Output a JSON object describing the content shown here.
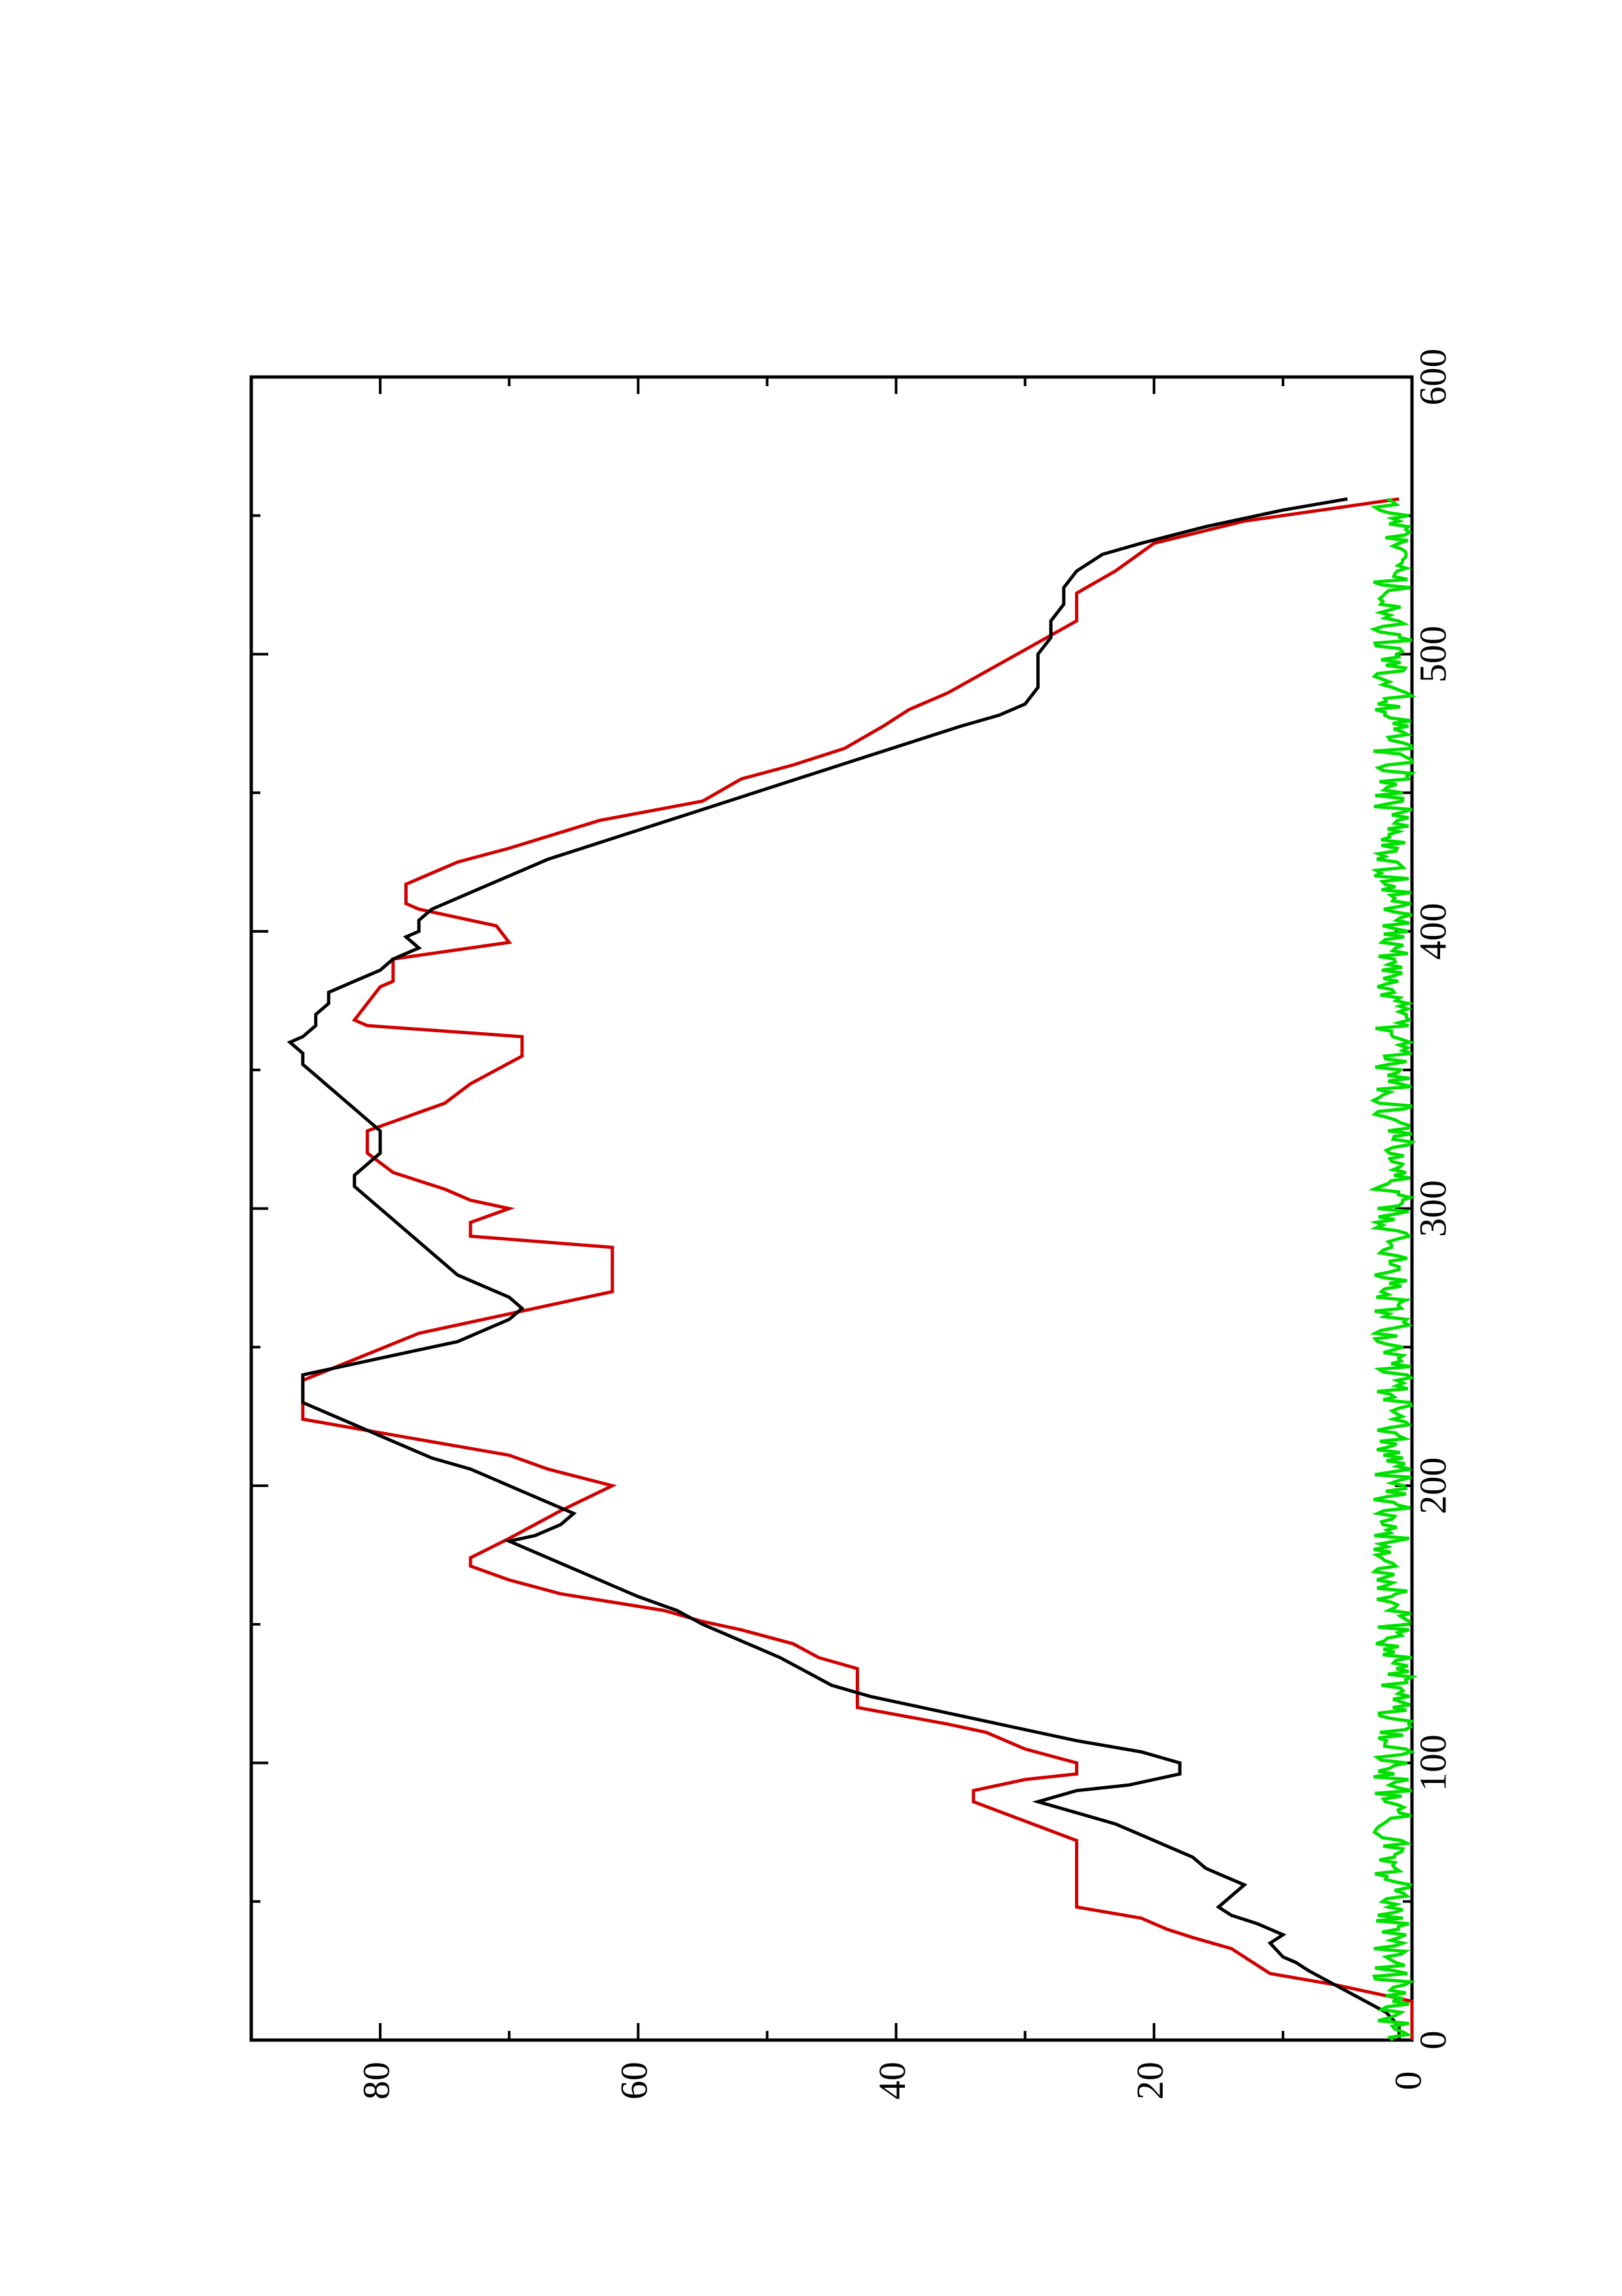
{
  "chart_data": {
    "type": "line",
    "orientation": "rotated 90° counter-clockwise (landscape plot on portrait page)",
    "title": "",
    "xlabel": "",
    "ylabel": "",
    "xlim": [
      0,
      600
    ],
    "ylim": [
      0,
      90
    ],
    "x_ticks_major": [
      0,
      100,
      200,
      300,
      400,
      500,
      600
    ],
    "x_ticks_minor": [
      50,
      150,
      250,
      350,
      450,
      550
    ],
    "y_ticks_major": [
      0,
      20,
      40,
      60,
      80
    ],
    "y_ticks_minor": [
      10,
      30,
      50,
      70,
      90
    ],
    "x_tick_labels": [
      "0",
      "100",
      "200",
      "300",
      "400",
      "500",
      "600"
    ],
    "y_tick_labels": [
      "0",
      "20",
      "40",
      "60",
      "80"
    ],
    "grid": false,
    "legend": "none",
    "series": [
      {
        "color": "#d00000",
        "style": "staircase",
        "x": [
          0,
          14,
          20,
          24,
          33,
          37,
          40,
          44,
          48,
          72,
          86,
          90,
          94,
          96,
          100,
          105,
          111,
          114,
          120,
          134,
          138,
          143,
          148,
          151,
          155,
          158,
          161,
          166,
          171,
          174,
          181,
          191,
          200,
          206,
          211,
          224,
          238,
          255,
          262,
          270,
          286,
          290,
          295,
          300,
          303,
          307,
          313,
          320,
          328,
          338,
          345,
          355,
          362,
          366,
          368,
          380,
          382,
          390,
          396,
          402,
          408,
          410,
          417,
          425,
          430,
          440,
          447,
          455,
          460,
          466,
          474,
          480,
          486,
          512,
          522,
          530,
          540,
          548,
          556
        ],
        "y": [
          0,
          0,
          6,
          11,
          14,
          17,
          19,
          21,
          26,
          26,
          34,
          34,
          30,
          26,
          26,
          30,
          33,
          36,
          43,
          43,
          46,
          48,
          52,
          55,
          58,
          62,
          66,
          70,
          73,
          73,
          70,
          66,
          62,
          67,
          70,
          86,
          86,
          77,
          70,
          62,
          62,
          73,
          73,
          70,
          73,
          75,
          79,
          81,
          81,
          75,
          73,
          69,
          69,
          81,
          82,
          80,
          79,
          79,
          70,
          71,
          77,
          78,
          78,
          74,
          70,
          63,
          55,
          52,
          48,
          44,
          41,
          39,
          36,
          26,
          26,
          23,
          20,
          13,
          1
        ]
      },
      {
        "color": "#000000",
        "style": "line",
        "x": [
          0,
          5,
          10,
          15,
          20,
          25,
          28,
          30,
          35,
          38,
          42,
          45,
          48,
          52,
          56,
          60,
          62,
          66,
          70,
          74,
          78,
          82,
          86,
          90,
          92,
          96,
          100,
          104,
          108,
          112,
          116,
          120,
          124,
          128,
          133,
          138,
          142,
          146,
          150,
          155,
          160,
          164,
          168,
          172,
          176,
          180,
          182,
          186,
          190,
          194,
          198,
          202,
          206,
          210,
          214,
          218,
          222,
          226,
          230,
          240,
          244,
          248,
          252,
          256,
          260,
          264,
          268,
          272,
          276,
          280,
          284,
          288,
          292,
          296,
          300,
          304,
          308,
          312,
          316,
          320,
          324,
          328,
          332,
          336,
          340,
          344,
          348,
          352,
          356,
          360,
          362,
          366,
          370,
          374,
          378,
          382,
          386,
          390,
          394,
          398,
          400,
          404,
          408,
          412,
          416,
          420,
          426,
          432,
          438,
          444,
          450,
          456,
          462,
          468,
          474,
          478,
          482,
          488,
          494,
          500,
          506,
          512,
          518,
          524,
          530,
          536,
          540,
          546,
          552,
          556
        ],
        "y": [
          1,
          1,
          2,
          4,
          6,
          8,
          9,
          10,
          11,
          10,
          12,
          14,
          15,
          14,
          13,
          15,
          16,
          17,
          19,
          21,
          23,
          26,
          29,
          26,
          22,
          18,
          18,
          21,
          26,
          30,
          34,
          38,
          42,
          45,
          47,
          49,
          51,
          53,
          55,
          57,
          60,
          62,
          64,
          66,
          68,
          70,
          68,
          66,
          65,
          67,
          69,
          71,
          73,
          76,
          78,
          80,
          82,
          84,
          86,
          86,
          82,
          78,
          74,
          72,
          70,
          69,
          70,
          72,
          74,
          75,
          76,
          77,
          78,
          79,
          80,
          81,
          82,
          82,
          81,
          80,
          80,
          80,
          81,
          82,
          83,
          84,
          85,
          86,
          86,
          87,
          86,
          85,
          85,
          84,
          84,
          82,
          80,
          79,
          77,
          78,
          77,
          77,
          76,
          74,
          72,
          70,
          67,
          63,
          59,
          55,
          51,
          47,
          43,
          39,
          35,
          32,
          30,
          29,
          29,
          29,
          28,
          28,
          27,
          27,
          26,
          24,
          21,
          16,
          10,
          5
        ]
      },
      {
        "color": "#00e000",
        "style": "noise",
        "x_start": 0,
        "x_end": 556,
        "y_base": 1.5,
        "y_amplitude": 1.5
      }
    ]
  }
}
